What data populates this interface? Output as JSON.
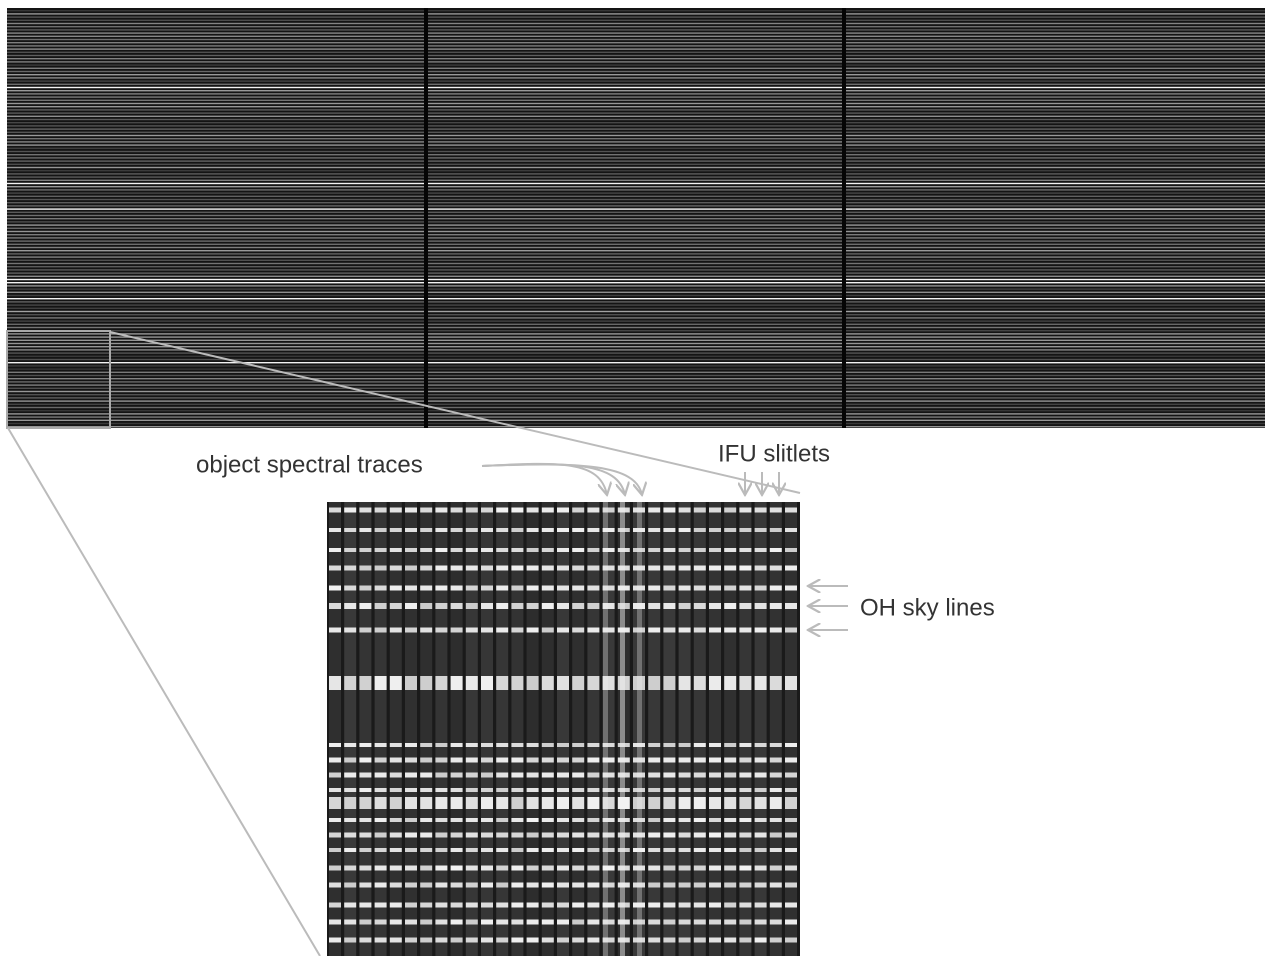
{
  "annotations": {
    "object_traces": "object spectral traces",
    "slitlets": "IFU slitlets",
    "sky_lines": "OH sky lines"
  }
}
